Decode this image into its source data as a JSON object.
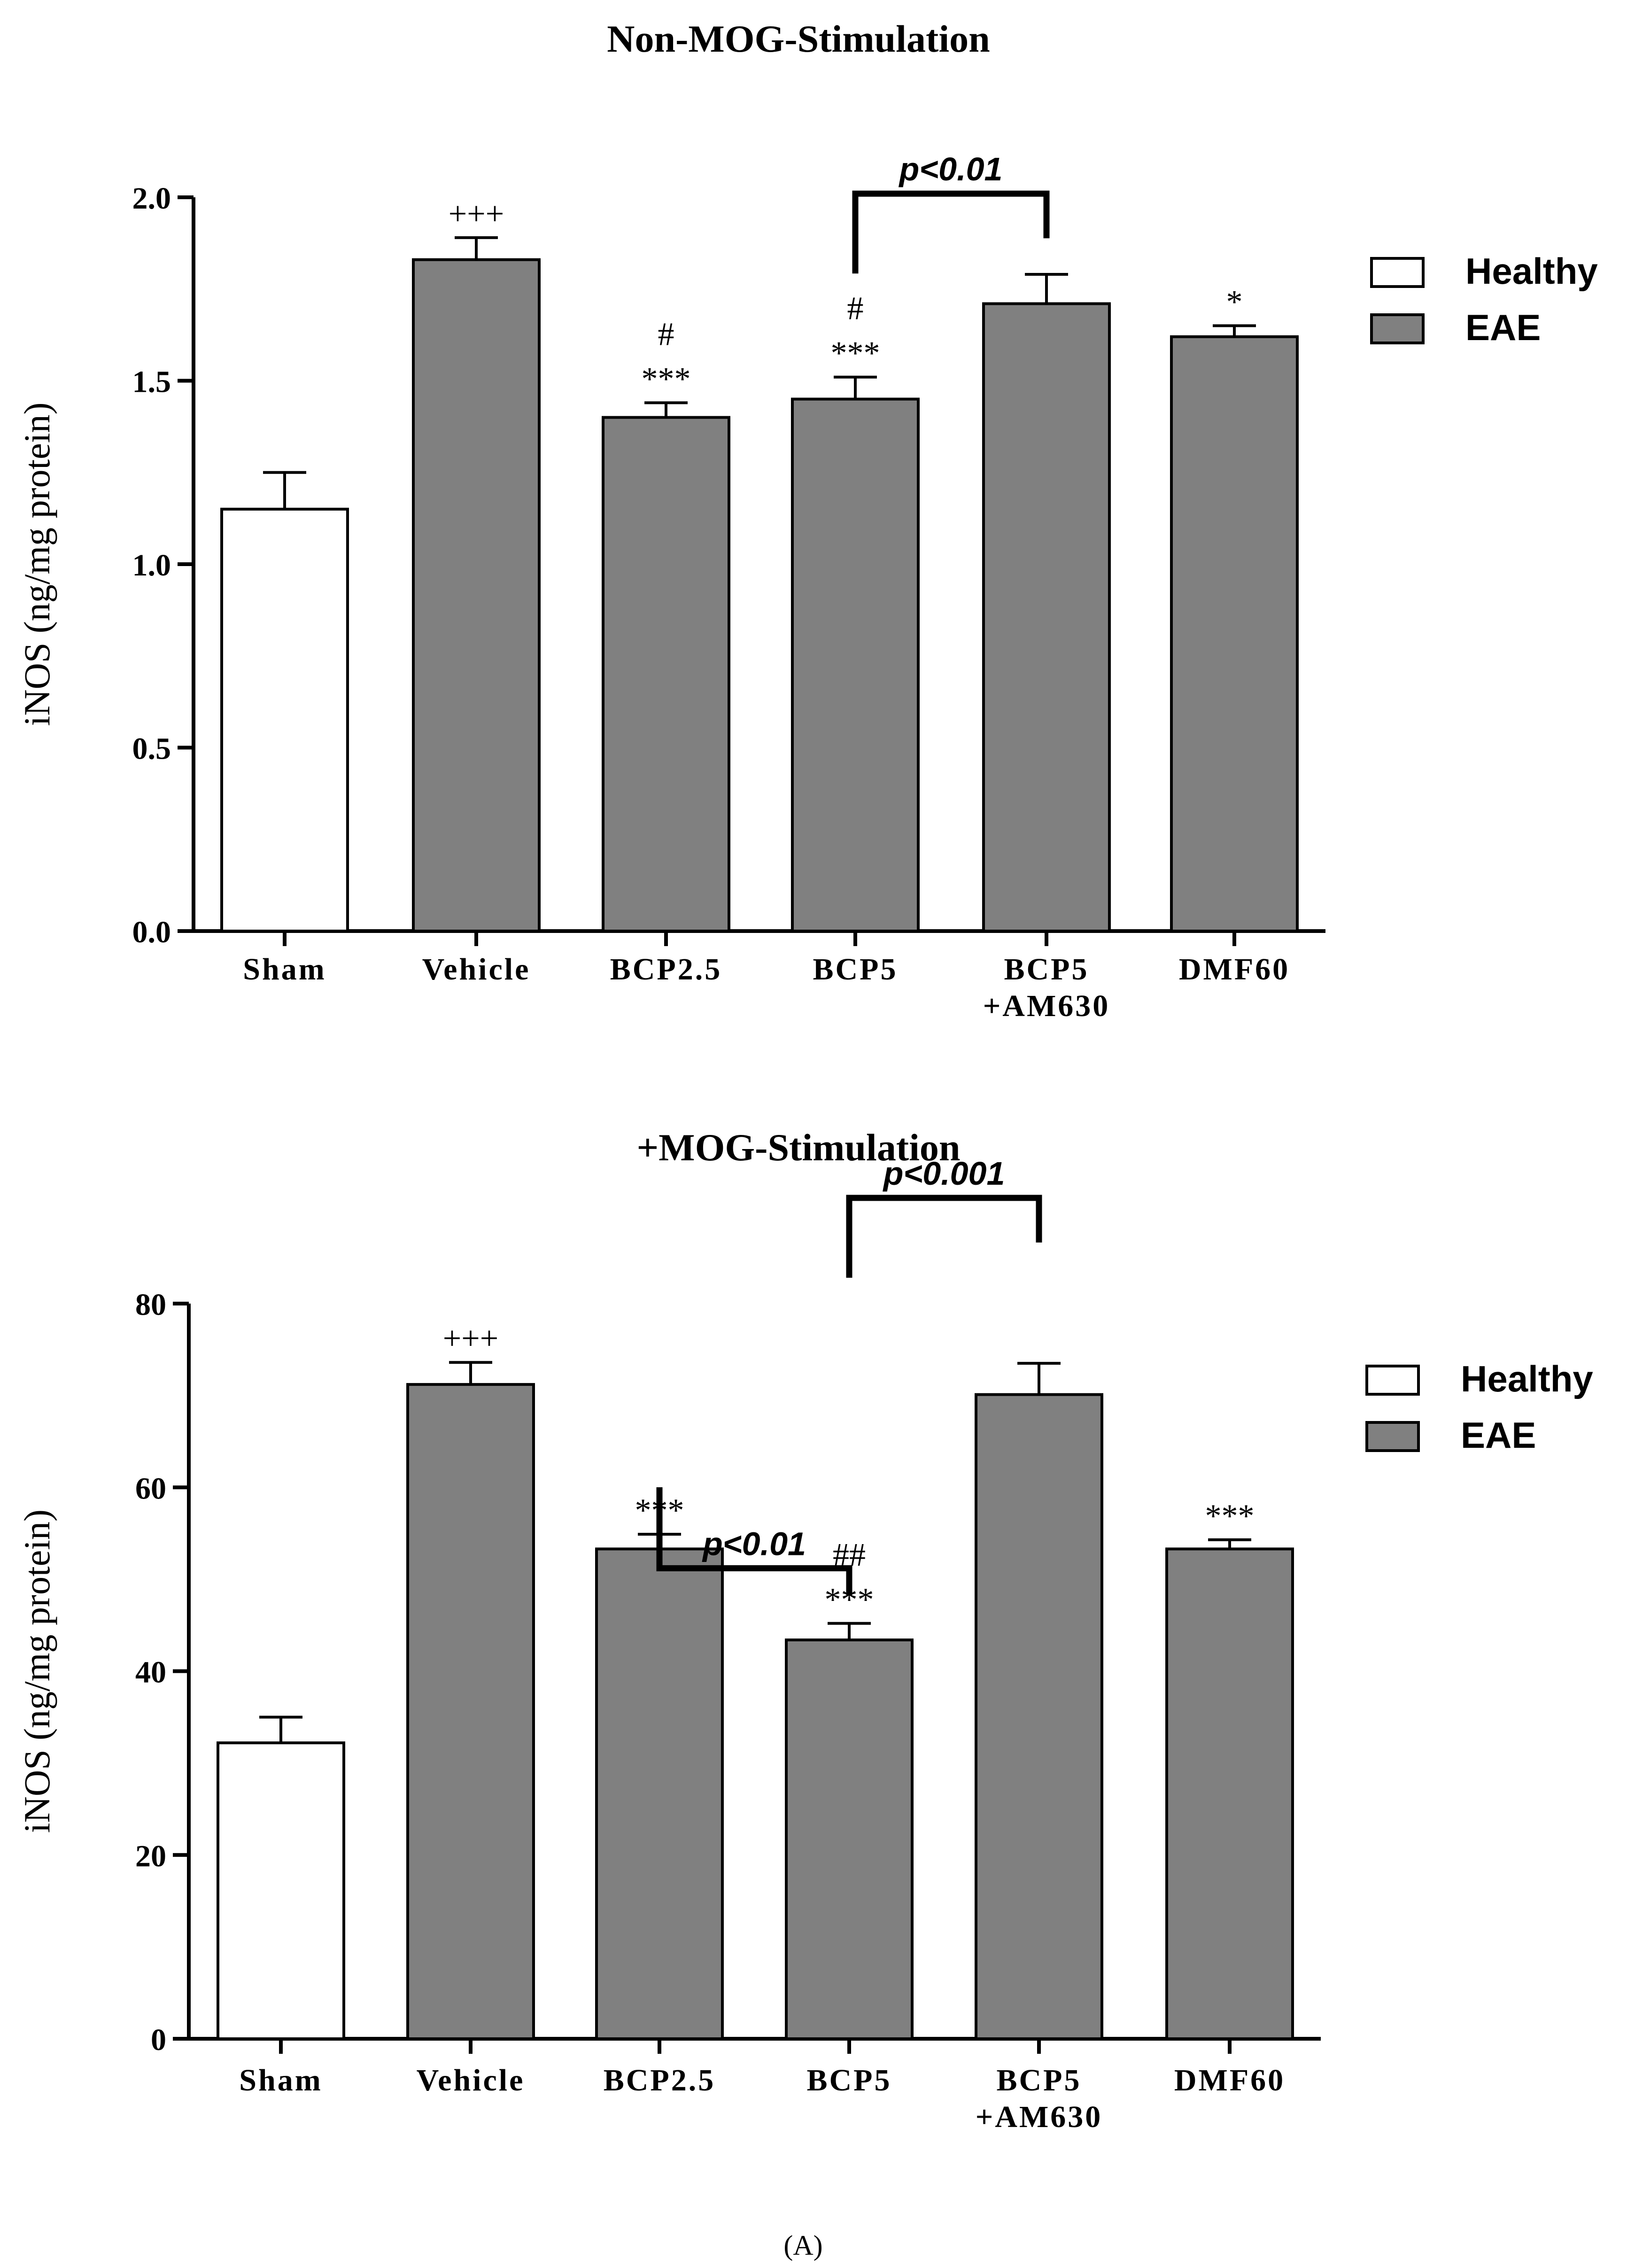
{
  "figure_label": "(A)",
  "colors": {
    "healthy": "#ffffff",
    "eae": "#808080",
    "axis": "#000000"
  },
  "chart_data": [
    {
      "type": "bar",
      "title": "Non-MOG-Stimulation",
      "ylabel": "iNOS (ng/mg protein)",
      "xlabel": "",
      "ylim": [
        0,
        2.0
      ],
      "yticks": [
        "0.0",
        "0.5",
        "1.0",
        "1.5",
        "2.0"
      ],
      "ytick_values": [
        0,
        0.5,
        1.0,
        1.5,
        2.0
      ],
      "categories": [
        [
          "Sham"
        ],
        [
          "Vehicle"
        ],
        [
          "BCP2.5"
        ],
        [
          "BCP5"
        ],
        [
          "BCP5",
          "+AM630"
        ],
        [
          "DMF60"
        ]
      ],
      "groups": [
        "Healthy",
        "EAE",
        "EAE",
        "EAE",
        "EAE",
        "EAE"
      ],
      "values": [
        1.15,
        1.83,
        1.4,
        1.45,
        1.71,
        1.62
      ],
      "errors": [
        0.1,
        0.06,
        0.04,
        0.06,
        0.08,
        0.03
      ],
      "annotations": [
        [],
        [
          "+++"
        ],
        [
          "***",
          "#"
        ],
        [
          "***",
          "#"
        ],
        [],
        [
          "*"
        ]
      ],
      "brackets": [
        {
          "from": 3,
          "to": 4,
          "label": "p<0.01",
          "rise": 0.22
        }
      ],
      "legend": [
        {
          "label": "Healthy",
          "group": "Healthy"
        },
        {
          "label": "EAE",
          "group": "EAE"
        }
      ],
      "legend_position": "right"
    },
    {
      "type": "bar",
      "title": "+MOG-Stimulation",
      "ylabel": "iNOS (ng/mg protein)",
      "xlabel": "",
      "ylim": [
        0,
        80
      ],
      "yticks": [
        "0",
        "20",
        "40",
        "60",
        "80"
      ],
      "ytick_values": [
        0,
        20,
        40,
        60,
        80
      ],
      "categories": [
        [
          "Sham"
        ],
        [
          "Vehicle"
        ],
        [
          "BCP2.5"
        ],
        [
          "BCP5"
        ],
        [
          "BCP5",
          "+AM630"
        ],
        [
          "DMF60"
        ]
      ],
      "groups": [
        "Healthy",
        "EAE",
        "EAE",
        "EAE",
        "EAE",
        "EAE"
      ],
      "values": [
        32.2,
        71.2,
        53.3,
        43.4,
        70.1,
        53.3
      ],
      "errors": [
        2.8,
        2.4,
        1.6,
        1.8,
        3.4,
        1.0
      ],
      "annotations": [
        [],
        [
          "+++"
        ],
        [
          "***"
        ],
        [
          "***",
          "##"
        ],
        [],
        [
          "***"
        ]
      ],
      "brackets": [
        {
          "from": 2,
          "to": 3,
          "label": "p<0.01",
          "rise": 6
        },
        {
          "from": 3,
          "to": 4,
          "label": "p<0.001",
          "rise": 18
        }
      ],
      "legend": [
        {
          "label": "Healthy",
          "group": "Healthy"
        },
        {
          "label": "EAE",
          "group": "EAE"
        }
      ],
      "legend_position": "right"
    }
  ]
}
